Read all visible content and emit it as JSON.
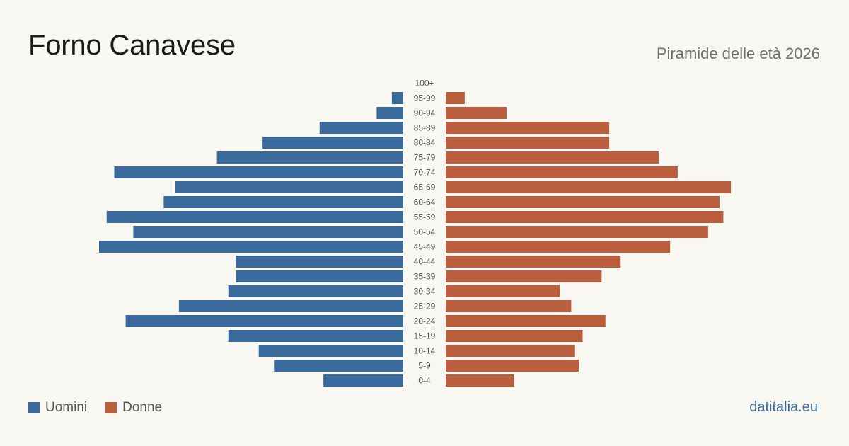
{
  "title": "Forno Canavese",
  "subtitle": "Piramide delle età 2026",
  "source": "datitalia.eu",
  "colors": {
    "men": "#3a6a9b",
    "women": "#bb5e3d",
    "background": "#f9f7f2",
    "tick_label": "#555555"
  },
  "legend": {
    "men_label": "Uomini",
    "women_label": "Donne"
  },
  "chart_data": {
    "type": "bar",
    "orientation": "horizontal-population-pyramid",
    "categories": [
      "100+",
      "95-99",
      "90-94",
      "85-89",
      "80-84",
      "75-79",
      "70-74",
      "65-69",
      "60-64",
      "55-59",
      "50-54",
      "45-49",
      "40-44",
      "35-39",
      "30-34",
      "25-29",
      "20-24",
      "15-19",
      "10-14",
      "5-9",
      "0-4"
    ],
    "series": [
      {
        "name": "Uomini",
        "side": "left",
        "values": [
          0,
          3,
          7,
          22,
          37,
          49,
          76,
          60,
          63,
          78,
          71,
          80,
          44,
          44,
          46,
          59,
          73,
          46,
          38,
          34,
          21
        ]
      },
      {
        "name": "Donne",
        "side": "right",
        "values": [
          0,
          5,
          16,
          43,
          43,
          56,
          61,
          75,
          72,
          73,
          69,
          59,
          46,
          41,
          30,
          33,
          42,
          36,
          34,
          35,
          18
        ]
      }
    ],
    "xlim": [
      0,
      80
    ],
    "grid": false,
    "legend": "bottom-left"
  }
}
